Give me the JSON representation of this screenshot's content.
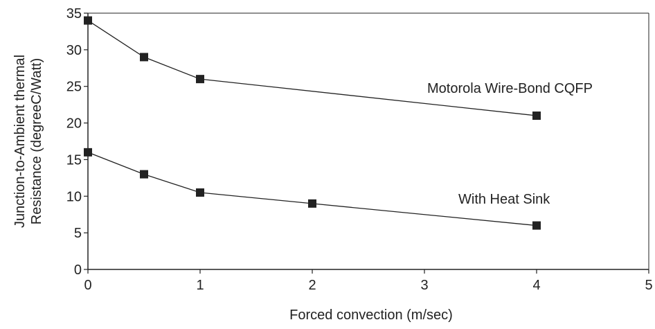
{
  "chart_data": {
    "type": "line",
    "title": "",
    "xlabel": "Forced convection (m/sec)",
    "ylabel_lines": [
      "Junction-to-Ambient thermal",
      "Resistance  (degreeC/Watt)"
    ],
    "xlim": [
      0,
      5
    ],
    "ylim": [
      0,
      35
    ],
    "xticks": [
      0,
      1,
      2,
      3,
      4,
      5
    ],
    "yticks": [
      0,
      5,
      10,
      15,
      20,
      25,
      30,
      35
    ],
    "grid": false,
    "legend": "none",
    "marker": "square",
    "color": "#222222",
    "series": [
      {
        "name": "Motorola Wire-Bond CQFP",
        "x": [
          0,
          0.5,
          1,
          4
        ],
        "y": [
          34,
          29,
          26,
          21
        ]
      },
      {
        "name": "With Heat Sink",
        "x": [
          0,
          0.5,
          1,
          2,
          4
        ],
        "y": [
          16,
          13,
          10.5,
          9,
          6
        ]
      }
    ]
  }
}
